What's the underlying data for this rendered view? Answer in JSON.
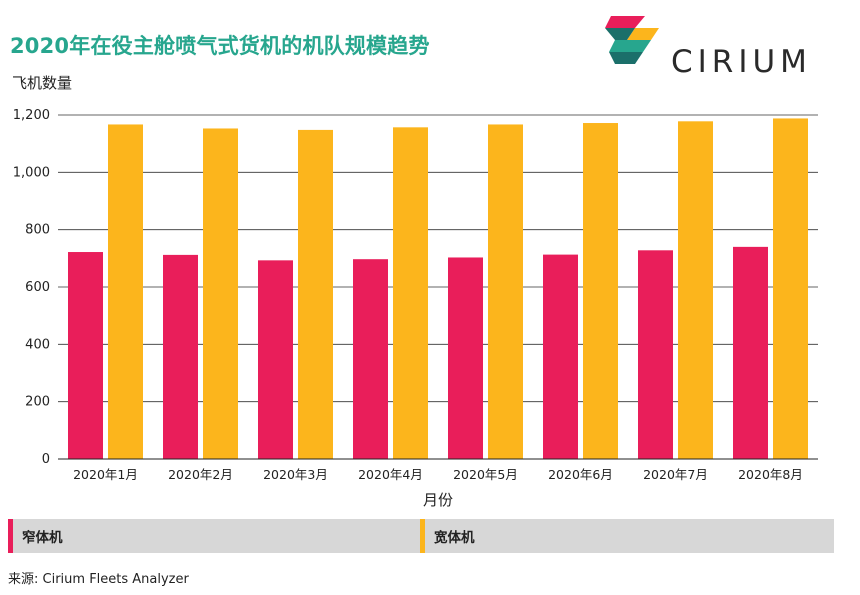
{
  "title": "2020年在役主舱喷气式货机的机队规模趋势",
  "brand": {
    "name": "CIRIUM"
  },
  "source": "来源:  Cirium Fleets Analyzer",
  "colors": {
    "narrowbody": "#e91e5a",
    "widebody": "#fcb51c",
    "title": "#27a68e",
    "legend_bg": "#d7d7d7",
    "logo_colors": [
      "#e91e5a",
      "#fcb51c",
      "#27a68e",
      "#1b6f6a"
    ]
  },
  "chart_data": {
    "type": "bar",
    "ylabel": "飞机数量",
    "xlabel": "月份",
    "categories": [
      "2020年1月",
      "2020年2月",
      "2020年3月",
      "2020年4月",
      "2020年5月",
      "2020年6月",
      "2020年7月",
      "2020年8月"
    ],
    "series": [
      {
        "name": "窄体机",
        "values": [
          722,
          712,
          693,
          697,
          703,
          713,
          728,
          740
        ]
      },
      {
        "name": "宽体机",
        "values": [
          1167,
          1153,
          1148,
          1157,
          1167,
          1172,
          1178,
          1188
        ]
      }
    ],
    "ylim": [
      0,
      1200
    ],
    "yticks": [
      0,
      200,
      400,
      600,
      800,
      1000,
      1200
    ],
    "ytick_labels": [
      "0",
      "200",
      "400",
      "600",
      "800",
      "1,000",
      "1,200"
    ],
    "grid": true,
    "legend_position": "bottom"
  }
}
